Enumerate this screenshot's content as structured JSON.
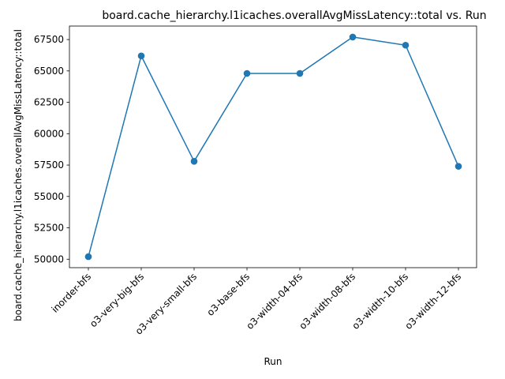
{
  "chart_data": {
    "type": "line",
    "title": "board.cache_hierarchy.l1icaches.overallAvgMissLatency::total vs. Run",
    "xlabel": "Run",
    "ylabel": "board.cache_hierarchy.l1icaches.overallAvgMissLatency::total",
    "categories": [
      "inorder-bfs",
      "o3-very-big-bfs",
      "o3-very-small-bfs",
      "o3-base-bfs",
      "o3-width-04-bfs",
      "o3-width-08-bfs",
      "o3-width-10-bfs",
      "o3-width-12-bfs"
    ],
    "series": [
      {
        "values": [
          50200,
          66200,
          57800,
          64800,
          64800,
          67700,
          67050,
          57400
        ]
      }
    ],
    "y_ticks": [
      50000,
      52500,
      55000,
      57500,
      60000,
      62500,
      65000,
      67500
    ],
    "y_tick_labels": [
      "50000",
      "52500",
      "55000",
      "57500",
      "60000",
      "62500",
      "65000",
      "67500"
    ],
    "ylim": [
      49325,
      68575
    ],
    "grid": false,
    "line_color": "#1f77b4",
    "marker": "circle"
  }
}
